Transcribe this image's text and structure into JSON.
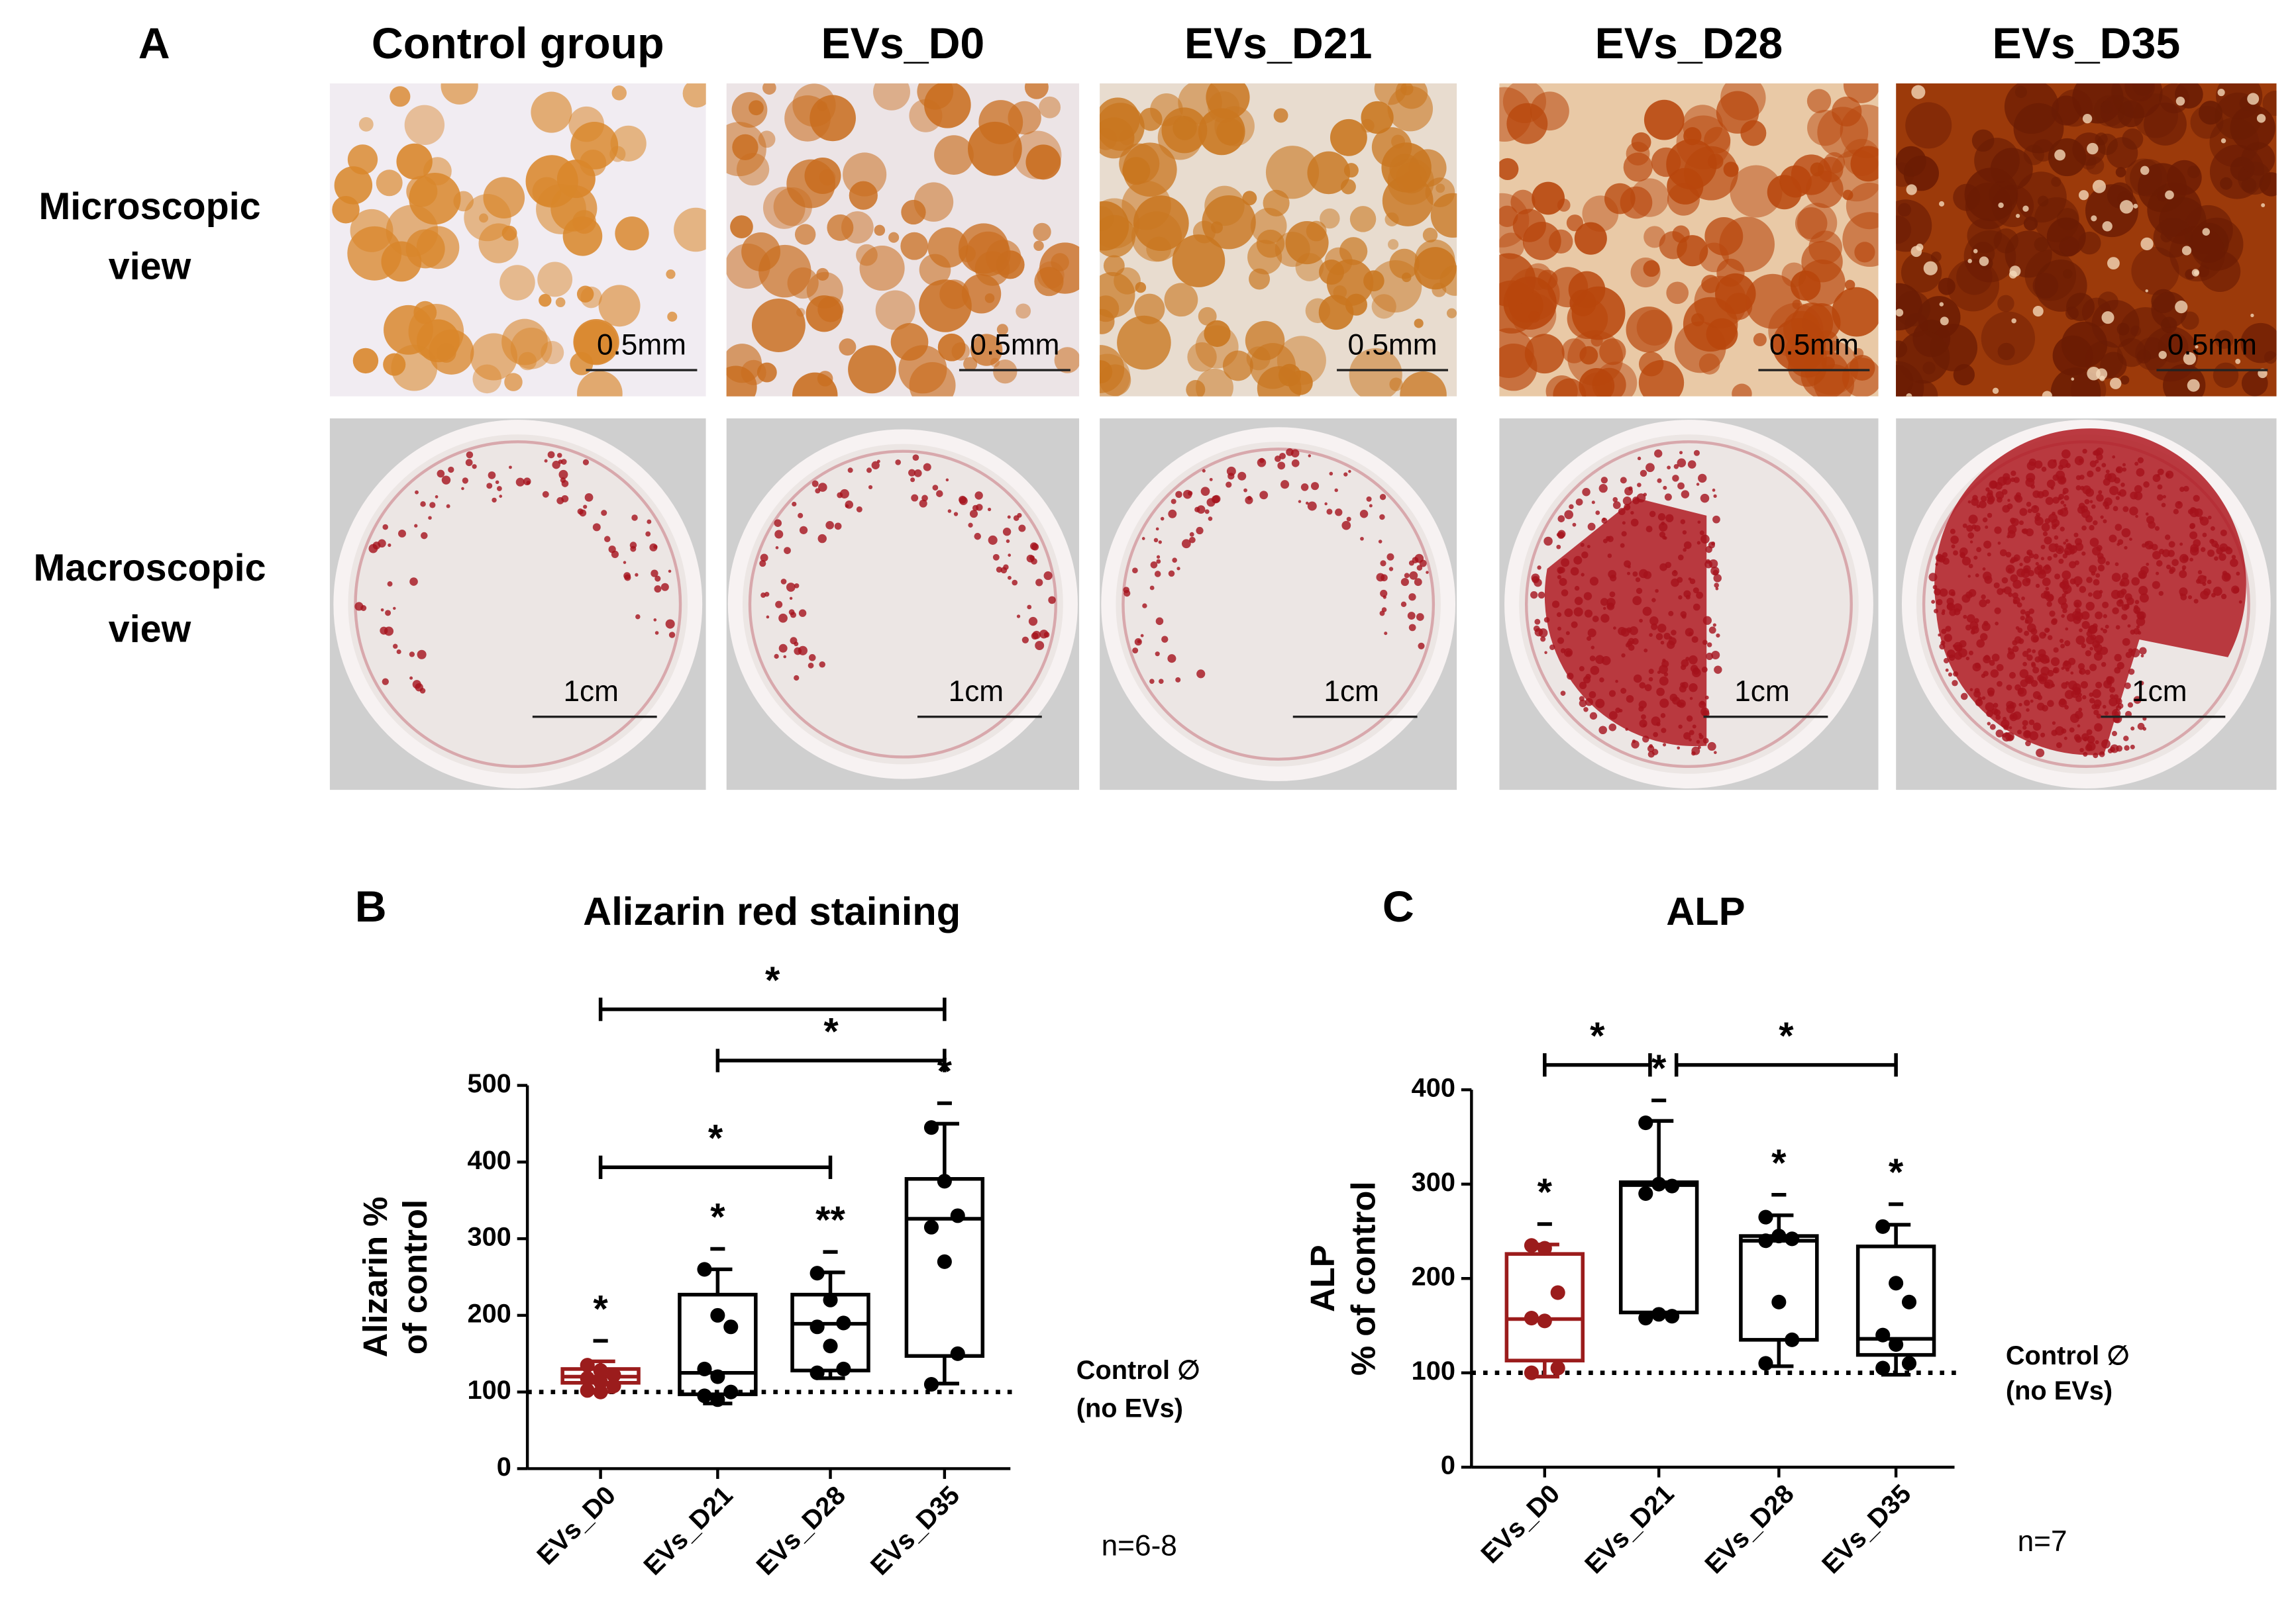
{
  "figure": {
    "panel_a": {
      "label": "A",
      "columns": [
        "Control group",
        "EVs_D0",
        "EVs_D21",
        "EVs_D28",
        "EVs_D35"
      ],
      "rows": [
        {
          "label": [
            "Microscopic",
            "view"
          ],
          "scale_bars": [
            "0.5mm",
            "0.5mm",
            "0.5mm",
            "0.5mm",
            "0.5mm"
          ]
        },
        {
          "label": [
            "Macroscopic",
            "view"
          ],
          "scale_bars": [
            "1cm",
            "1cm",
            "1cm",
            "1cm",
            "1cm"
          ]
        }
      ]
    }
  },
  "chart_data": [
    {
      "type": "box",
      "panel": "B",
      "title": "Alizarin red staining",
      "ylabel": [
        "Alizarin %",
        "of control"
      ],
      "categories": [
        "EVs_D0",
        "EVs_D21",
        "EVs_D28",
        "EVs_D35"
      ],
      "boxes": [
        {
          "color": "#9b1c1c",
          "min": 100,
          "q1": 112,
          "median": 120,
          "q3": 130,
          "max": 140,
          "points": [
            135,
            128,
            122,
            118,
            113,
            108,
            102,
            100
          ]
        },
        {
          "color": "#000000",
          "min": 85,
          "q1": 97,
          "median": 125,
          "q3": 227,
          "max": 260,
          "points": [
            260,
            200,
            185,
            130,
            120,
            100,
            95,
            90
          ]
        },
        {
          "color": "#000000",
          "min": 118,
          "q1": 128,
          "median": 189,
          "q3": 227,
          "max": 256,
          "points": [
            255,
            220,
            190,
            185,
            160,
            130,
            125
          ]
        },
        {
          "color": "#000000",
          "min": 111,
          "q1": 147,
          "median": 326,
          "q3": 378,
          "max": 450,
          "points": [
            445,
            375,
            330,
            315,
            270,
            150,
            110
          ]
        }
      ],
      "ylim": [
        0,
        500
      ],
      "yticks": [
        0,
        100,
        200,
        300,
        400,
        500
      ],
      "reference_line": 100,
      "reference_label": [
        "Control ∅",
        "(no EVs)"
      ],
      "n_label": "n=6-8",
      "box_labels": [
        "*",
        "*",
        "**",
        "*"
      ],
      "brackets": [
        {
          "groups": [
            "EVs_D0",
            "EVs_D35"
          ],
          "label": "*"
        },
        {
          "groups": [
            "EVs_D21",
            "EVs_D35"
          ],
          "label": "*"
        },
        {
          "groups": [
            "EVs_D0",
            "EVs_D28"
          ],
          "label": "*"
        }
      ]
    },
    {
      "type": "box",
      "panel": "C",
      "title": "ALP",
      "ylabel": [
        "ALP",
        "% of control"
      ],
      "categories": [
        "EVs_D0",
        "EVs_D21",
        "EVs_D28",
        "EVs_D35"
      ],
      "boxes": [
        {
          "color": "#9b1c1c",
          "min": 96,
          "q1": 113,
          "median": 157,
          "q3": 226,
          "max": 236,
          "points": [
            235,
            232,
            185,
            158,
            155,
            105,
            100
          ]
        },
        {
          "color": "#000000",
          "min": 160,
          "q1": 164,
          "median": 299,
          "q3": 302,
          "max": 367,
          "points": [
            365,
            300,
            298,
            290,
            162,
            160,
            158
          ]
        },
        {
          "color": "#000000",
          "min": 107,
          "q1": 135,
          "median": 240,
          "q3": 245,
          "max": 267,
          "points": [
            265,
            245,
            242,
            240,
            175,
            135,
            110
          ]
        },
        {
          "color": "#000000",
          "min": 98,
          "q1": 119,
          "median": 136,
          "q3": 234,
          "max": 257,
          "points": [
            255,
            195,
            175,
            140,
            130,
            110,
            105
          ]
        }
      ],
      "ylim": [
        0,
        400
      ],
      "yticks": [
        0,
        100,
        200,
        300,
        400
      ],
      "reference_line": 100,
      "reference_label": [
        "Control ∅",
        "(no EVs)"
      ],
      "n_label": "n=7",
      "box_labels": [
        "*",
        "*",
        "*",
        "*"
      ],
      "brackets": [
        {
          "groups": [
            "EVs_D0",
            "EVs_D21"
          ],
          "label": "*"
        },
        {
          "groups": [
            "EVs_D21",
            "EVs_D35"
          ],
          "label": "*"
        }
      ]
    }
  ]
}
